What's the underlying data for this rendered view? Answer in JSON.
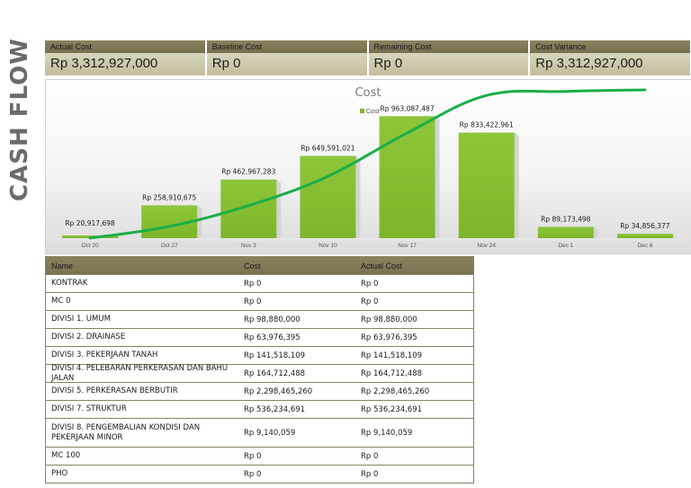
{
  "page": {
    "side_title": "CASH FLOW"
  },
  "kpis": [
    {
      "label": "Actual Cost",
      "value": "Rp 3,312,927,000"
    },
    {
      "label": "Baseline Cost",
      "value": "Rp 0"
    },
    {
      "label": "Remaining Cost",
      "value": "Rp 0"
    },
    {
      "label": "Cost Variance",
      "value": "Rp 3,312,927,000"
    }
  ],
  "chart_data": {
    "type": "bar",
    "title": "Cost",
    "legend": [
      "Cost"
    ],
    "legend_position": "top",
    "categories": [
      "Oct 20",
      "Oct 27",
      "Nov 3",
      "Nov 10",
      "Nov 17",
      "Nov 24",
      "Dec 1",
      "Dec 8"
    ],
    "series": [
      {
        "name": "Cost",
        "values": [
          20917698,
          258910675,
          462967283,
          649591021,
          963087487,
          833422961,
          89173498,
          34856377
        ],
        "labels": [
          "Rp 20,917,698",
          "Rp 258,910,675",
          "Rp 462,967,283",
          "Rp 649,591,021",
          "Rp 963,087,487",
          "Rp 833,422,961",
          "Rp 89,173,498",
          "Rp 34,856,377"
        ]
      }
    ],
    "cumulative_line": {
      "values": [
        20917698,
        279828373,
        742795656,
        1392386677,
        2355474164,
        3188897125,
        3278070623,
        3312927000
      ]
    },
    "colors": {
      "bar": "#7db52a",
      "line": "#1aae48"
    },
    "grid": false
  },
  "table": {
    "headers": [
      "Name",
      "Cost",
      "Actual Cost"
    ],
    "rows": [
      [
        "KONTRAK",
        "Rp 0",
        "Rp 0"
      ],
      [
        "MC 0",
        "Rp 0",
        "Rp 0"
      ],
      [
        "DIVISI 1. UMUM",
        "Rp 98,880,000",
        "Rp 98,880,000"
      ],
      [
        "DIVISI 2. DRAINASE",
        "Rp 63,976,395",
        "Rp 63,976,395"
      ],
      [
        "DIVISI 3. PEKERJAAN TANAH",
        "Rp 141,518,109",
        "Rp 141,518,109"
      ],
      [
        "DIVISI 4. PELEBARAN PERKERASAN DAN BAHU JALAN",
        "Rp 164,712,488",
        "Rp 164,712,488"
      ],
      [
        "DIVISI 5. PERKERASAN BERBUTIR",
        "Rp 2,298,465,260",
        "Rp 2,298,465,260"
      ],
      [
        "DIVISI 7. STRUKTUR",
        "Rp 536,234,691",
        "Rp 536,234,691"
      ],
      [
        "DIVISI 8. PENGEMBALIAN KONDISI DAN PEKERJAAN MINOR",
        "Rp 9,140,059",
        "Rp 9,140,059"
      ],
      [
        "MC 100",
        "Rp 0",
        "Rp 0"
      ],
      [
        "PHO",
        "Rp 0",
        "Rp 0"
      ]
    ]
  }
}
